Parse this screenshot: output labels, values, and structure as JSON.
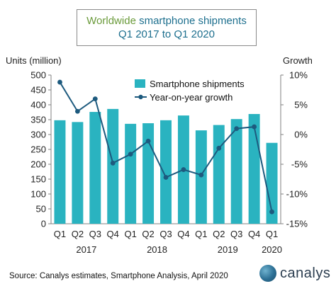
{
  "chart_data": {
    "type": "bar",
    "title_part1": "Worldwide",
    "title_part2": "smartphone shipments",
    "subtitle": "Q1 2017 to Q1 2020",
    "ylabel": "Units (million)",
    "y2label": "Growth",
    "ylim": [
      0,
      500
    ],
    "y2lim": [
      -15,
      10
    ],
    "yticks": [
      "0",
      "50",
      "100",
      "150",
      "200",
      "250",
      "300",
      "350",
      "400",
      "450",
      "500"
    ],
    "y2ticks": [
      "-15%",
      "-10%",
      "-5%",
      "0%",
      "5%",
      "10%"
    ],
    "categories": [
      "Q1",
      "Q2",
      "Q3",
      "Q4",
      "Q1",
      "Q2",
      "Q3",
      "Q4",
      "Q1",
      "Q2",
      "Q3",
      "Q4",
      "Q1"
    ],
    "years": [
      "2017",
      "2018",
      "2019",
      "2020"
    ],
    "series": [
      {
        "name": "Smartphone shipments",
        "kind": "bar",
        "color": "#2ab3c0",
        "values": [
          348,
          342,
          376,
          386,
          336,
          338,
          348,
          364,
          314,
          332,
          352,
          369,
          272
        ]
      },
      {
        "name": "Year-on-year growth",
        "kind": "line",
        "color": "#1d5a7e",
        "values": [
          8.8,
          3.9,
          6.0,
          -4.8,
          -3.3,
          -1.1,
          -7.2,
          -5.9,
          -6.8,
          -2.3,
          1.0,
          1.3,
          -13.0
        ]
      }
    ],
    "legend_position": "top-right",
    "grid": false
  },
  "source": "Source: Canalys estimates, Smartphone Analysis, April 2020",
  "logo": "canalys"
}
